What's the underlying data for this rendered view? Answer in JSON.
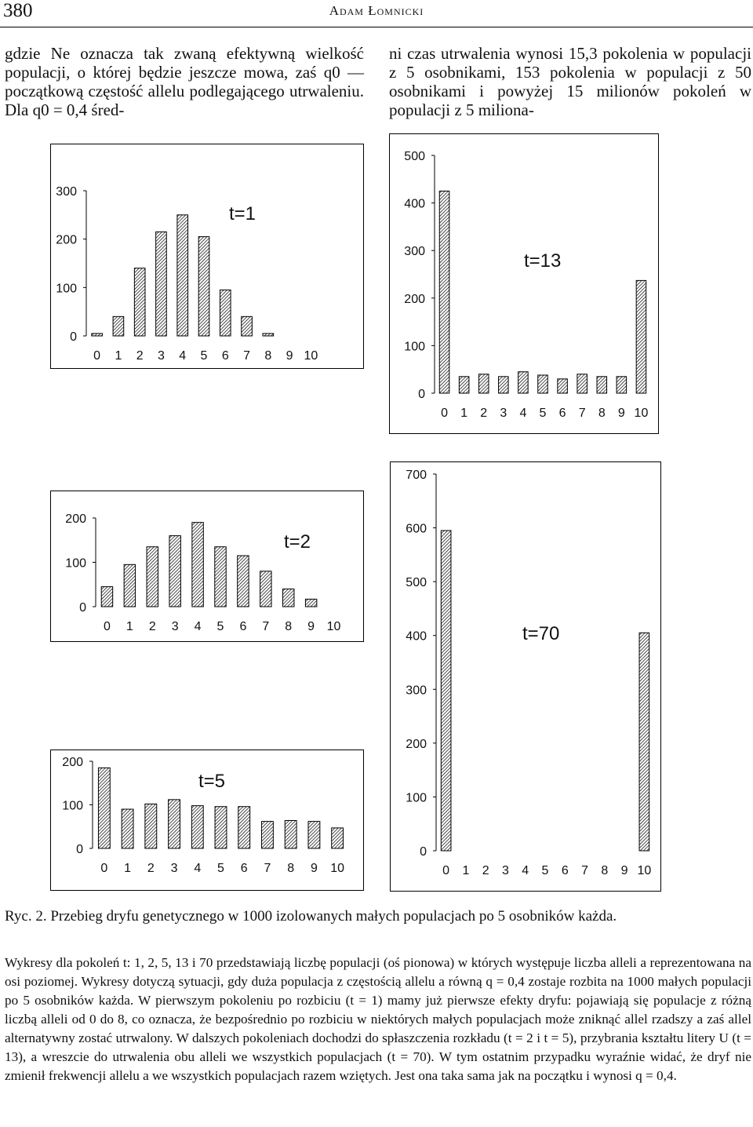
{
  "header": {
    "page_number": "380",
    "running_head": "Adam Łomnicki"
  },
  "body_text": {
    "left_column": "gdzie Ne oznacza tak zwaną efektywną wielkość populacji, o której będzie jeszcze mowa, zaś q0 — początkową częstość allelu podlegającego utrwaleniu. Dla q0 = 0,4 śred-",
    "right_column": "ni czas utrwalenia wynosi 15,3 pokolenia w populacji z 5 osobnikami, 153 pokolenia w populacji z 50 osobnikami i powyżej 15 milionów pokoleń w populacji z 5 miliona-"
  },
  "chart_data": [
    {
      "type": "bar",
      "title": "t=1",
      "categories": [
        "0",
        "1",
        "2",
        "3",
        "4",
        "5",
        "6",
        "7",
        "8",
        "9",
        "10"
      ],
      "values": [
        5,
        40,
        140,
        215,
        250,
        205,
        95,
        40,
        5,
        0,
        0
      ],
      "yticks": [
        "0",
        "100",
        "200",
        "300"
      ],
      "ylim": [
        0,
        300
      ],
      "fill": "hatched"
    },
    {
      "type": "bar",
      "title": "t=13",
      "categories": [
        "0",
        "1",
        "2",
        "3",
        "4",
        "5",
        "6",
        "7",
        "8",
        "9",
        "10"
      ],
      "values": [
        425,
        35,
        40,
        35,
        45,
        38,
        30,
        40,
        35,
        35,
        237
      ],
      "yticks": [
        "0",
        "100",
        "200",
        "300",
        "400",
        "500"
      ],
      "ylim": [
        0,
        500
      ],
      "fill": "hatched"
    },
    {
      "type": "bar",
      "title": "t=2",
      "categories": [
        "0",
        "1",
        "2",
        "3",
        "4",
        "5",
        "6",
        "7",
        "8",
        "9",
        "10"
      ],
      "values": [
        45,
        95,
        135,
        160,
        190,
        135,
        115,
        80,
        40,
        17,
        0
      ],
      "yticks": [
        "0",
        "100",
        "200"
      ],
      "ylim": [
        0,
        200
      ],
      "fill": "hatched"
    },
    {
      "type": "bar",
      "title": "t=70",
      "categories": [
        "0",
        "1",
        "2",
        "3",
        "4",
        "5",
        "6",
        "7",
        "8",
        "9",
        "10"
      ],
      "values": [
        595,
        0,
        0,
        0,
        0,
        0,
        0,
        0,
        0,
        0,
        405
      ],
      "yticks": [
        "0",
        "100",
        "200",
        "300",
        "400",
        "500",
        "600",
        "700"
      ],
      "ylim": [
        0,
        700
      ],
      "fill": "hatched"
    },
    {
      "type": "bar",
      "title": "t=5",
      "categories": [
        "0",
        "1",
        "2",
        "3",
        "4",
        "5",
        "6",
        "7",
        "8",
        "9",
        "10"
      ],
      "values": [
        185,
        90,
        102,
        112,
        98,
        96,
        96,
        62,
        64,
        62,
        47
      ],
      "yticks": [
        "0",
        "100",
        "200"
      ],
      "ylim": [
        0,
        200
      ],
      "fill": "hatched"
    }
  ],
  "caption": {
    "title": "Ryc. 2. Przebieg dryfu genetycznego w 1000 izolowanych małych populacjach po 5 osobników każda.",
    "body": "Wykresy dla pokoleń t: 1, 2, 5, 13 i 70 przedstawiają liczbę populacji (oś pionowa) w których występuje liczba alleli a reprezentowana na osi poziomej. Wykresy dotyczą sytuacji, gdy duża populacja z częstością allelu a równą q = 0,4 zostaje rozbita na 1000 małych populacji po 5 osobników każda. W pierwszym pokoleniu po rozbiciu (t = 1) mamy już pierwsze efekty dryfu: pojawiają się populacje z różną liczbą alleli od 0 do 8, co oznacza, że bezpośrednio po rozbiciu w niektórych małych populacjach może zniknąć allel rzadszy a zaś allel alternatywny zostać utrwalony. W dalszych pokoleniach dochodzi do spłaszczenia rozkładu (t = 2 i t = 5), przybrania kształtu litery U (t = 13), a wreszcie do utrwalenia obu alleli we wszystkich populacjach (t = 70). W tym ostatnim przypadku wyraźnie widać, że dryf nie zmienił frekwencji allelu a we wszystkich populacjach razem wziętych. Jest ona taka sama jak na początku i wynosi q = 0,4."
  }
}
